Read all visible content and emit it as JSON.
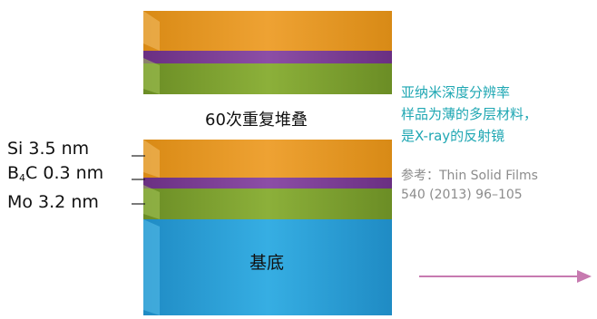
{
  "stack_caption": "60次重复堆叠",
  "substrate_label": "基底",
  "layers": {
    "si": "Si 3.5 nm",
    "b4c_prefix": "B",
    "b4c_sub": "4",
    "b4c_suffix": "C 0.3 nm",
    "mo": "Mo 3.2 nm"
  },
  "note": {
    "lines": [
      "亚纳米深度分辨率",
      "样品为薄的多层材料，",
      "是X-ray的反射镜"
    ]
  },
  "reference": {
    "lines": [
      "参考：Thin Solid Films",
      "540 (2013) 96–105"
    ]
  },
  "colors": {
    "si_layer": "#e49a1f",
    "b4c_layer": "#7d3f95",
    "mo_layer": "#7da030",
    "substrate": "#2a9fd6",
    "note_text": "#1fa7b3",
    "arrow": "#c77ab0"
  }
}
